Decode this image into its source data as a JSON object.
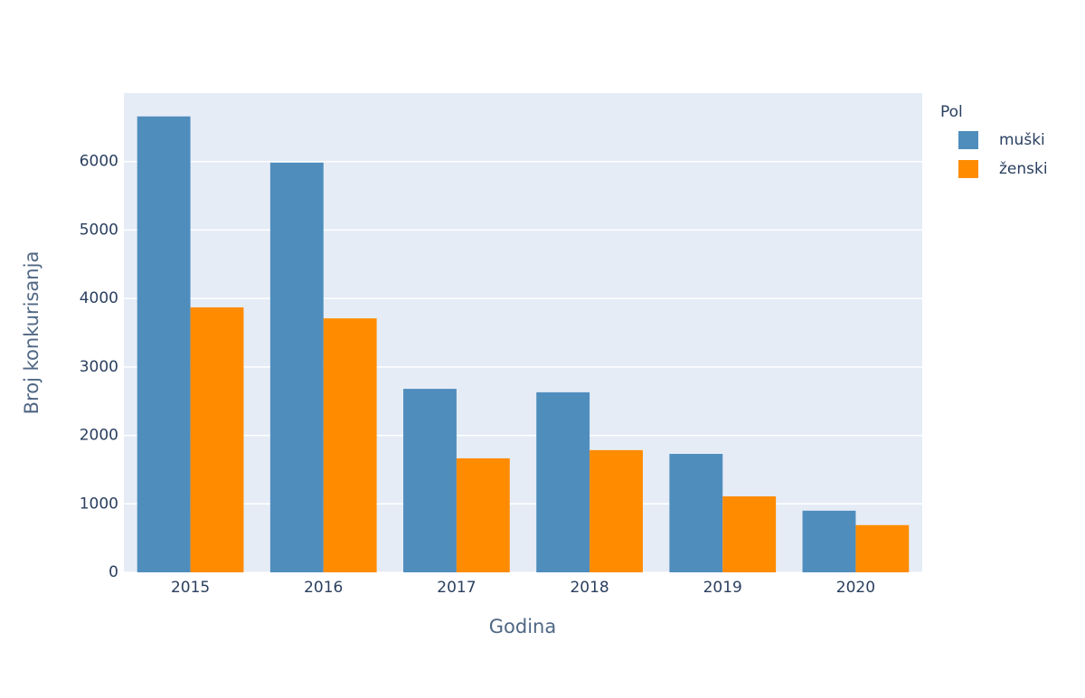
{
  "chart_data": {
    "type": "bar",
    "x_label": "Godina",
    "y_label": "Broj konkurisanja",
    "categories": [
      "2015",
      "2016",
      "2017",
      "2018",
      "2019",
      "2020"
    ],
    "legend_title": "Pol",
    "series": [
      {
        "name": "muški",
        "color": "#4f8dbd",
        "values": [
          6660,
          5985,
          2680,
          2630,
          1730,
          900
        ]
      },
      {
        "name": "ženski",
        "color": "#ff8c00",
        "values": [
          3870,
          3710,
          1665,
          1785,
          1110,
          690
        ]
      }
    ],
    "ylim": [
      0,
      7000
    ],
    "yticks": [
      0,
      1000,
      2000,
      3000,
      4000,
      5000,
      6000
    ],
    "grid": true
  }
}
